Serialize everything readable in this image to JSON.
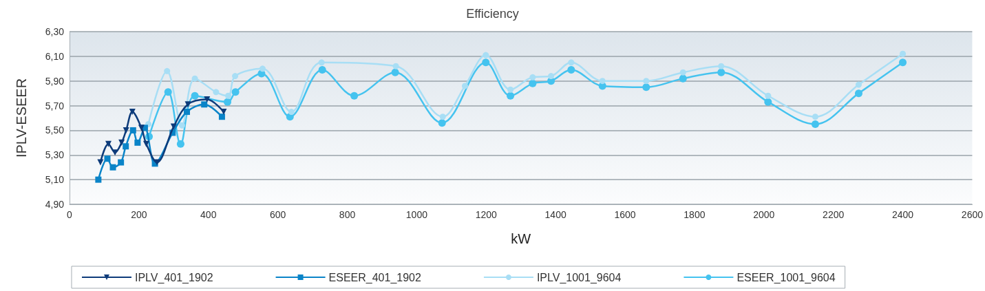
{
  "chart_data": {
    "type": "line",
    "title": "Efficiency",
    "xlabel": "kW",
    "ylabel": "IPLV-ESEER",
    "xlim": [
      0,
      2600
    ],
    "xticks": [
      0,
      200,
      400,
      600,
      800,
      1000,
      1200,
      1400,
      1600,
      1800,
      2000,
      2200,
      2400,
      2600
    ],
    "ylim": [
      4.9,
      6.3
    ],
    "yticks": [
      {
        "value": 4.9,
        "label": "4,90"
      },
      {
        "value": 5.1,
        "label": "5,10"
      },
      {
        "value": 5.3,
        "label": "5,30"
      },
      {
        "value": 5.5,
        "label": "5,50"
      },
      {
        "value": 5.7,
        "label": "5,70"
      },
      {
        "value": 5.9,
        "label": "5,90"
      },
      {
        "value": 6.1,
        "label": "6,10"
      },
      {
        "value": 6.3,
        "label": "6,30"
      }
    ],
    "grid": "y",
    "legend": "bottom",
    "series": [
      {
        "name": "IPLV_401_1902",
        "color": "#0d3b7a",
        "marker": "triangle",
        "x": [
          89,
          112,
          131,
          150,
          163,
          181,
          207,
          221,
          252,
          300,
          341,
          396,
          444
        ],
        "values": [
          5.24,
          5.39,
          5.32,
          5.4,
          5.5,
          5.65,
          5.52,
          5.39,
          5.24,
          5.53,
          5.71,
          5.75,
          5.65
        ]
      },
      {
        "name": "ESEER_401_1902",
        "color": "#0a84c8",
        "marker": "square",
        "x": [
          83,
          109,
          125,
          148,
          162,
          183,
          196,
          217,
          246,
          297,
          338,
          388,
          439
        ],
        "values": [
          5.1,
          5.27,
          5.2,
          5.24,
          5.37,
          5.5,
          5.4,
          5.52,
          5.23,
          5.48,
          5.65,
          5.71,
          5.61
        ]
      },
      {
        "name": "IPLV_1001_9604",
        "color": "#a8def5",
        "marker": "circle",
        "x": [
          227,
          281,
          324,
          361,
          422,
          457,
          477,
          556,
          639,
          726,
          940,
          1075,
          1139,
          1199,
          1270,
          1334,
          1387,
          1445,
          1535,
          1661,
          1767,
          1877,
          2012,
          2148,
          2273,
          2400
        ],
        "values": [
          5.55,
          5.98,
          5.54,
          5.92,
          5.81,
          5.78,
          5.94,
          6.0,
          5.65,
          6.05,
          6.02,
          5.61,
          5.86,
          6.11,
          5.83,
          5.93,
          5.94,
          6.05,
          5.9,
          5.9,
          5.97,
          6.02,
          5.78,
          5.61,
          5.87,
          6.12
        ]
      },
      {
        "name": "ESEER_1001_9604",
        "color": "#45c3ef",
        "marker": "circle",
        "x": [
          229,
          284,
          320,
          361,
          455,
          478,
          553,
          635,
          728,
          820,
          938,
          1073,
          1199,
          1270,
          1334,
          1387,
          1445,
          1535,
          1661,
          1767,
          1877,
          2012,
          2148,
          2273,
          2400
        ],
        "values": [
          5.45,
          5.81,
          5.39,
          5.78,
          5.73,
          5.81,
          5.96,
          5.61,
          5.99,
          5.78,
          5.97,
          5.56,
          6.05,
          5.78,
          5.88,
          5.9,
          5.99,
          5.86,
          5.85,
          5.92,
          5.97,
          5.73,
          5.55,
          5.8,
          6.05
        ]
      }
    ]
  }
}
